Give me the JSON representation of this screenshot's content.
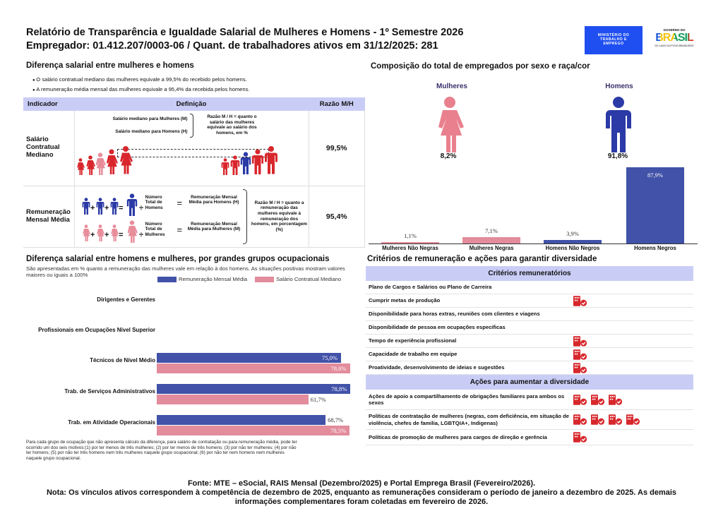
{
  "header": {
    "title": "Relatório de Transparência e Igualdade Salarial de Mulheres e Homens - 1º Semestre 2026",
    "subtitle": "Empregador: 01.412.207/0003-06 / Quant. de trabalhadores ativos em 31/12/2025: 281",
    "logo_ministry": "MINISTÉRIO DO TRABALHO E EMPREGO",
    "logo_gov_top": "GOVERNO DO",
    "logo_gov_main": "BRASIL",
    "logo_gov_bottom": "DO LADO DO POVO BRASILEIRO"
  },
  "salary_gap": {
    "heading": "Diferença salarial entre mulheres e homens",
    "bullets": [
      "O salário contratual mediano das mulheres equivale a 99,5% do recebido pelos homens.",
      "A remuneração média mensal das mulheres equivale a 95,4% da recebida pelos homens."
    ],
    "table": {
      "headers": [
        "Indicador",
        "Definição",
        "Razão M/H"
      ],
      "rows": [
        {
          "indicator": "Salário Contratual Mediano",
          "def_women": "Salário mediano para Mulheres (M)",
          "def_men": "Salário mediano para Homens (H)",
          "def_ratio": "Razão M / H = quanto o salário das mulheres equivale ao salário dos homens, em %",
          "ratio": "99,5%"
        },
        {
          "indicator": "Remuneração Mensal Média",
          "num_men": "Número Total de Homens",
          "res_men": "Remuneração Mensal Média para Homens (H)",
          "num_women": "Número Total de Mulheres",
          "res_women": "Remuneração Mensal Média para Mulheres (M)",
          "def_ratio": "Razão M / H = quanto a remuneração das mulheres equivale à remuneração dos homens, em porcentagem (%)",
          "ratio": "95,4%"
        }
      ]
    }
  },
  "occupational": {
    "heading": "Diferença salarial entre homens e mulheres, por grandes grupos ocupacionais",
    "subtitle": "São apresentadas em % quanto a remuneração das mulheres vale em relação à dos homens. As situações positivas mostram valores maiores ou iguais a 100%",
    "footnote": "Para cada grupo de ocupação que não apresenta cálculo da diferença, para salário de contratação ou para remuneração média, pode ter ocorrido um dos seis motivos:(1) por ter menos de três mulheres; (2) por ter menos de três homens; (3) por não ter mulheres; (4) por não ter homens; (5) por não ter três homens nem três mulheres naquele grupo ocupacional; (6) por não ter nem homens nem mulheres naquele grupo ocupacional."
  },
  "composition": {
    "heading": "Composição do total de empregados por sexo e raça/cor",
    "women_label": "Mulheres",
    "men_label": "Homens",
    "women_pct": "8,2%",
    "men_pct": "91,8%"
  },
  "chart_data": [
    {
      "type": "bar",
      "orientation": "horizontal",
      "title": "Diferença salarial entre homens e mulheres, por grandes grupos ocupacionais",
      "categories": [
        "Dirigentes e Gerentes",
        "Profissionais em Ocupações Nível Superior",
        "Técnicos de Nível Médio",
        "Trab. de Serviços Administrativos",
        "Trab. em Atividade Operacionais"
      ],
      "series": [
        {
          "name": "Remuneração Mensal Média",
          "color": "#4152a8",
          "values": [
            null,
            null,
            75.0,
            78.8,
            68.7
          ],
          "labels": [
            null,
            null,
            "75,0%",
            "78,8%",
            "68,7%"
          ]
        },
        {
          "name": "Salário Contratual Mediano",
          "color": "#e28c9c",
          "values": [
            null,
            null,
            78.6,
            61.7,
            78.5
          ],
          "labels": [
            null,
            null,
            "78,6%",
            "61,7%",
            "78,5%"
          ]
        }
      ],
      "legend": "top-right",
      "xlim": [
        0,
        100
      ]
    },
    {
      "type": "bar",
      "title": "Composição do total de empregados por sexo e raça/cor",
      "categories": [
        "Mulheres Não Negras",
        "Mulheres Negras",
        "Homens Não Negros",
        "Homens Negros"
      ],
      "values": [
        1.1,
        7.1,
        3.9,
        87.9
      ],
      "labels": [
        "1,1%",
        "7,1%",
        "3,9%",
        "87,9%"
      ],
      "colors": [
        "#e28c9c",
        "#e28c9c",
        "#4152a8",
        "#4152a8"
      ],
      "ylim": [
        0,
        100
      ]
    }
  ],
  "criteria": {
    "heading": "Critérios de remuneração e ações para garantir diversidade",
    "section1": "Critérios remuneratórios",
    "items1": [
      {
        "label": "Plano de Cargos e Salários ou Plano de Carreira",
        "icons": 0
      },
      {
        "label": "Cumprir metas de produção",
        "icons": 1
      },
      {
        "label": "Disponibilidade para horas extras, reuniões com clientes e viagens",
        "icons": 0
      },
      {
        "label": "Disponibilidade de pessoa em ocupações especificas",
        "icons": 0
      },
      {
        "label": "Tempo de experiência profissional",
        "icons": 1
      },
      {
        "label": "Capacidade de trabalho em equipe",
        "icons": 1
      },
      {
        "label": "Proatividade, desenvolvimento de ideias e sugestões",
        "icons": 1
      }
    ],
    "section2": "Ações para aumentar a diversidade",
    "items2": [
      {
        "label": "Ações de apoio a compartilhamento de obrigações familiares para ambos os sexos",
        "icons": 3
      },
      {
        "label": "Políticas de contratação de mulheres (negras, com deficiência, em situação de violência, chefes de familia, LGBTQIA+, Indigenas)",
        "icons": 4
      },
      {
        "label": "Políticas de promoção de mulheres para cargos de direção e gerência",
        "icons": 1
      }
    ],
    "icon": "company-check-icon",
    "icon_color": "#d7272c"
  },
  "footer": {
    "source": "Fonte: MTE – eSocial, RAIS Mensal (Dezembro/2025) e Portal Emprega Brasil (Fevereiro/2026).",
    "note": "Nota: Os vínculos ativos correspondem à competência de dezembro de 2025, enquanto as remunerações consideram o período de janeiro a dezembro de 2025. As demais informações complementares foram coletadas em fevereiro de 2026."
  }
}
